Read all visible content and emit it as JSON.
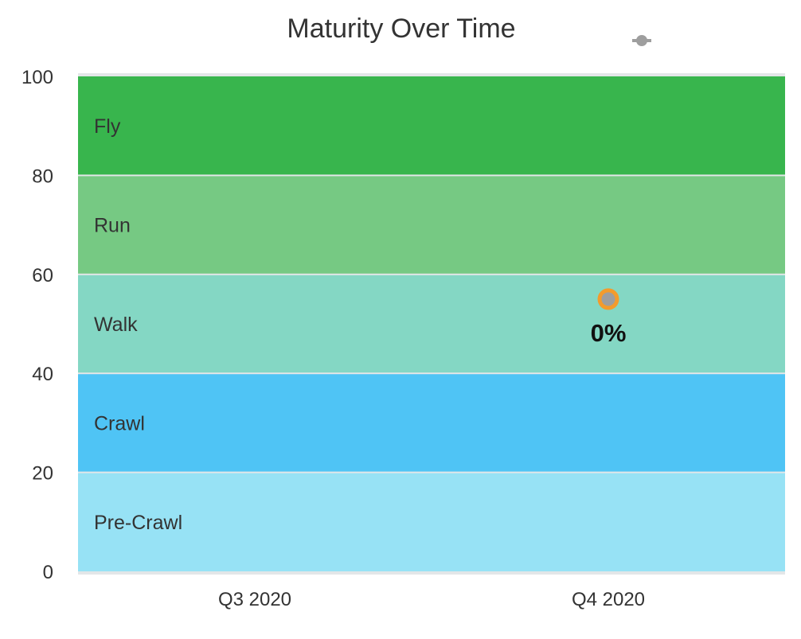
{
  "chart_data": {
    "type": "line",
    "title": "Maturity Over Time",
    "xlabel": "",
    "ylabel": "",
    "categories": [
      "Q3 2020",
      "Q4 2020"
    ],
    "ylim": [
      0,
      100
    ],
    "yticks": [
      0,
      20,
      40,
      60,
      80,
      100
    ],
    "bands": [
      {
        "label": "Pre-Crawl",
        "from": 0,
        "to": 20,
        "color": "#97e2f5"
      },
      {
        "label": "Crawl",
        "from": 20,
        "to": 40,
        "color": "#4fc4f5"
      },
      {
        "label": "Walk",
        "from": 40,
        "to": 60,
        "color": "#84d7c4"
      },
      {
        "label": "Run",
        "from": 60,
        "to": 80,
        "color": "#76c983"
      },
      {
        "label": "Fly",
        "from": 80,
        "to": 100,
        "color": "#38b54d"
      }
    ],
    "series": [
      {
        "values": [
          null,
          55
        ],
        "data_labels": [
          null,
          "0%"
        ],
        "color": "#9e9e9e",
        "marker_border": "#f39b2c"
      }
    ],
    "legend": {
      "placement": "top-right"
    },
    "grid": false
  }
}
